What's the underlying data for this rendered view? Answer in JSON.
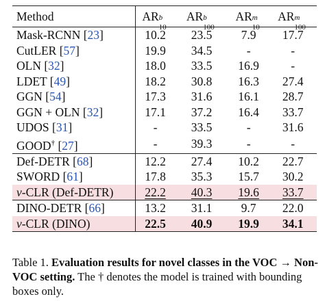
{
  "table": {
    "header": {
      "method": "Method",
      "cols": [
        {
          "base": "AR",
          "sup": "b",
          "sub": "10"
        },
        {
          "base": "AR",
          "sup": "b",
          "sub": "100"
        },
        {
          "base": "AR",
          "sup": "m",
          "sub": "10"
        },
        {
          "base": "AR",
          "sup": "m",
          "sub": "100"
        }
      ]
    },
    "rows": [
      {
        "name": "Mask-RCNN",
        "cite": "23",
        "vals": [
          "10.2",
          "23.5",
          "7.9",
          "17.7"
        ]
      },
      {
        "name": "CutLER",
        "cite": "57",
        "vals": [
          "19.9",
          "34.5",
          "-",
          "-"
        ]
      },
      {
        "name": "OLN",
        "cite": "32",
        "vals": [
          "18.0",
          "33.5",
          "16.9",
          "-"
        ]
      },
      {
        "name": "LDET",
        "cite": "49",
        "vals": [
          "18.2",
          "30.8",
          "16.3",
          "27.4"
        ]
      },
      {
        "name": "GGN",
        "cite": "54",
        "vals": [
          "17.3",
          "31.6",
          "16.1",
          "28.7"
        ]
      },
      {
        "name": "GGN + OLN",
        "cite": "32",
        "vals": [
          "17.1",
          "37.2",
          "16.4",
          "33.7"
        ]
      },
      {
        "name": "UDOS",
        "cite": "31",
        "vals": [
          "-",
          "33.5",
          "-",
          "31.6"
        ]
      },
      {
        "name": "GOOD",
        "mark": "†",
        "cite": "27",
        "vals": [
          "-",
          "39.3",
          "-",
          "-"
        ]
      },
      {
        "name": "Def-DETR",
        "cite": "68",
        "vals": [
          "12.2",
          "27.4",
          "10.2",
          "22.7"
        ]
      },
      {
        "name": "SWORD",
        "cite": "61",
        "vals": [
          "17.8",
          "35.3",
          "15.7",
          "30.2"
        ]
      },
      {
        "nu": "ν",
        "name": "-CLR (Def-DETR)",
        "vals": [
          "22.2",
          "40.3",
          "19.6",
          "33.7"
        ]
      },
      {
        "name": "DINO-DETR",
        "cite": "66",
        "vals": [
          "13.2",
          "31.1",
          "9.7",
          "22.0"
        ]
      },
      {
        "nu": "ν",
        "name": "-CLR (DINO)",
        "vals": [
          "22.5",
          "40.9",
          "19.9",
          "34.1"
        ]
      }
    ]
  },
  "caption": {
    "label": "Table 1.",
    "bold": "Evaluation results for novel classes in the VOC → Non-VOC setting.",
    "rest": "The † denotes the model is trained with bounding boxes only."
  }
}
